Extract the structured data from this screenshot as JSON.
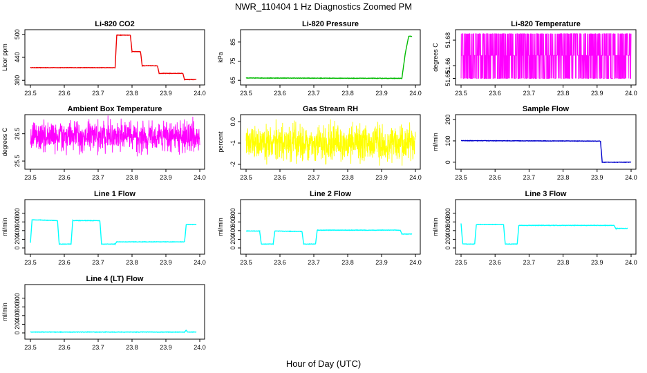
{
  "figure": {
    "title": "NWR_110404  1 Hz Diagnostics Zoomed PM",
    "xlabel": "Hour of Day (UTC)"
  },
  "chart_data": [
    {
      "type": "line",
      "title": "Li-820 CO2",
      "ylabel": "Licor ppm",
      "color": "#ee0000",
      "style": "step",
      "xlim": [
        23.5,
        24.0
      ],
      "ylim": [
        375,
        505
      ],
      "xticks": [
        "23.5",
        "23.6",
        "23.7",
        "23.8",
        "23.9",
        "24.0"
      ],
      "yticks": [
        380,
        440,
        500
      ],
      "yticklabels": [
        "380",
        "440",
        "500"
      ],
      "x": [
        23.5,
        23.75,
        23.755,
        23.795,
        23.8,
        23.825,
        23.83,
        23.875,
        23.88,
        23.95,
        23.955,
        23.99
      ],
      "y": [
        413,
        413,
        498,
        498,
        455,
        455,
        418,
        418,
        398,
        398,
        382,
        382
      ]
    },
    {
      "type": "line",
      "title": "Li-820 Pressure",
      "ylabel": "kPa",
      "color": "#00bb00",
      "style": "step",
      "xlim": [
        23.5,
        24.0
      ],
      "ylim": [
        64,
        90
      ],
      "xticks": [
        "23.5",
        "23.6",
        "23.7",
        "23.8",
        "23.9",
        "24.0"
      ],
      "yticks": [
        65,
        75,
        85
      ],
      "yticklabels": [
        "65",
        "75",
        "85"
      ],
      "x": [
        23.5,
        23.96,
        23.97,
        23.98,
        23.99
      ],
      "y": [
        66.2,
        66.0,
        79,
        88,
        88
      ]
    },
    {
      "type": "line",
      "title": "Li-820 Temperature",
      "ylabel": "degrees C",
      "color": "#ff00ff",
      "style": "noise",
      "xlim": [
        23.5,
        24.0
      ],
      "ylim": [
        51.647,
        51.686
      ],
      "xticks": [
        "23.5",
        "23.6",
        "23.7",
        "23.8",
        "23.9",
        "24.0"
      ],
      "yticks": [
        51.65,
        51.66,
        51.68
      ],
      "yticklabels": [
        "51.65",
        "51.66",
        "51.68"
      ],
      "x": [
        23.5,
        24.0
      ],
      "y": [
        51.65,
        51.685
      ],
      "levels": [
        51.65,
        51.668,
        51.685
      ]
    },
    {
      "type": "line",
      "title": "Ambient Box Temperature",
      "ylabel": "degrees C",
      "color": "#ff00ff",
      "style": "noise",
      "xlim": [
        23.5,
        24.0
      ],
      "ylim": [
        25.3,
        27.1
      ],
      "xticks": [
        "23.5",
        "23.6",
        "23.7",
        "23.8",
        "23.9",
        "24.0"
      ],
      "yticks": [
        25.5,
        26.5
      ],
      "yticklabels": [
        "25.5",
        "26.5"
      ],
      "x": [
        23.5,
        24.0
      ],
      "y": [
        26.4,
        26.4
      ],
      "spread": 0.35
    },
    {
      "type": "line",
      "title": "Gas Stream RH",
      "ylabel": "percent",
      "color": "#ffff00",
      "style": "noise",
      "xlim": [
        23.5,
        24.0
      ],
      "ylim": [
        -2.1,
        0.2
      ],
      "xticks": [
        "23.5",
        "23.6",
        "23.7",
        "23.8",
        "23.9",
        "24.0"
      ],
      "yticks": [
        -2,
        -1,
        0
      ],
      "yticklabels": [
        "-2",
        "-1",
        "0.0"
      ],
      "x": [
        23.5,
        24.0
      ],
      "y": [
        -1.0,
        -1.0
      ],
      "spread": 0.5
    },
    {
      "type": "line",
      "title": "Sample Flow",
      "ylabel": "ml/min",
      "color": "#0000cc",
      "style": "step",
      "xlim": [
        23.5,
        24.0
      ],
      "ylim": [
        -20,
        210
      ],
      "xticks": [
        "23.5",
        "23.6",
        "23.7",
        "23.8",
        "23.9",
        "24.0"
      ],
      "yticks": [
        0,
        100,
        200
      ],
      "yticklabels": [
        "0",
        "100",
        "200"
      ],
      "x": [
        23.5,
        23.91,
        23.915,
        24.0
      ],
      "y": [
        101,
        99,
        0,
        0
      ]
    },
    {
      "type": "line",
      "title": "Line 1 Flow",
      "ylabel": "ml/min",
      "color": "#00ffff",
      "style": "step",
      "xlim": [
        23.5,
        24.0
      ],
      "ylim": [
        -80,
        1050
      ],
      "xticks": [
        "23.5",
        "23.6",
        "23.7",
        "23.8",
        "23.9",
        "24.0"
      ],
      "yticks": [
        0,
        200,
        400,
        600,
        800
      ],
      "yticklabels": [
        "0",
        "200",
        "400",
        "600",
        "800"
      ],
      "x": [
        23.5,
        23.505,
        23.58,
        23.585,
        23.62,
        23.625,
        23.705,
        23.71,
        23.75,
        23.755,
        23.955,
        23.96,
        23.99
      ],
      "y": [
        120,
        650,
        630,
        90,
        90,
        630,
        630,
        90,
        90,
        140,
        140,
        540,
        540
      ]
    },
    {
      "type": "line",
      "title": "Line 2 Flow",
      "ylabel": "ml/min",
      "color": "#00ffff",
      "style": "step",
      "xlim": [
        23.5,
        24.0
      ],
      "ylim": [
        -80,
        1050
      ],
      "xticks": [
        "23.5",
        "23.6",
        "23.7",
        "23.8",
        "23.9",
        "24.0"
      ],
      "yticks": [
        0,
        200,
        400,
        600,
        800
      ],
      "yticklabels": [
        "0",
        "200",
        "400",
        "600",
        "800"
      ],
      "x": [
        23.5,
        23.54,
        23.545,
        23.58,
        23.585,
        23.665,
        23.67,
        23.705,
        23.71,
        23.955,
        23.96,
        23.99
      ],
      "y": [
        390,
        390,
        90,
        90,
        390,
        380,
        90,
        90,
        410,
        410,
        320,
        320
      ]
    },
    {
      "type": "line",
      "title": "Line 3 Flow",
      "ylabel": "ml/min",
      "color": "#00ffff",
      "style": "step",
      "xlim": [
        23.5,
        24.0
      ],
      "ylim": [
        -80,
        1050
      ],
      "xticks": [
        "23.5",
        "23.6",
        "23.7",
        "23.8",
        "23.9",
        "24.0"
      ],
      "yticks": [
        0,
        200,
        400,
        600,
        800
      ],
      "yticklabels": [
        "0",
        "200",
        "400",
        "600",
        "800"
      ],
      "x": [
        23.5,
        23.505,
        23.54,
        23.545,
        23.625,
        23.63,
        23.665,
        23.67,
        23.95,
        23.955,
        23.99
      ],
      "y": [
        560,
        90,
        90,
        540,
        540,
        90,
        90,
        520,
        520,
        450,
        450
      ]
    },
    {
      "type": "line",
      "title": "Line 4 (LT) Flow",
      "ylabel": "ml/min",
      "color": "#00ffff",
      "style": "step",
      "xlim": [
        23.5,
        24.0
      ],
      "ylim": [
        -80,
        1050
      ],
      "xticks": [
        "23.5",
        "23.6",
        "23.7",
        "23.8",
        "23.9",
        "24.0"
      ],
      "yticks": [
        0,
        200,
        400,
        600,
        800
      ],
      "yticklabels": [
        "0",
        "200",
        "400",
        "600",
        "800"
      ],
      "x": [
        23.5,
        23.955,
        23.96,
        23.963,
        23.99
      ],
      "y": [
        20,
        20,
        70,
        20,
        20
      ]
    }
  ]
}
